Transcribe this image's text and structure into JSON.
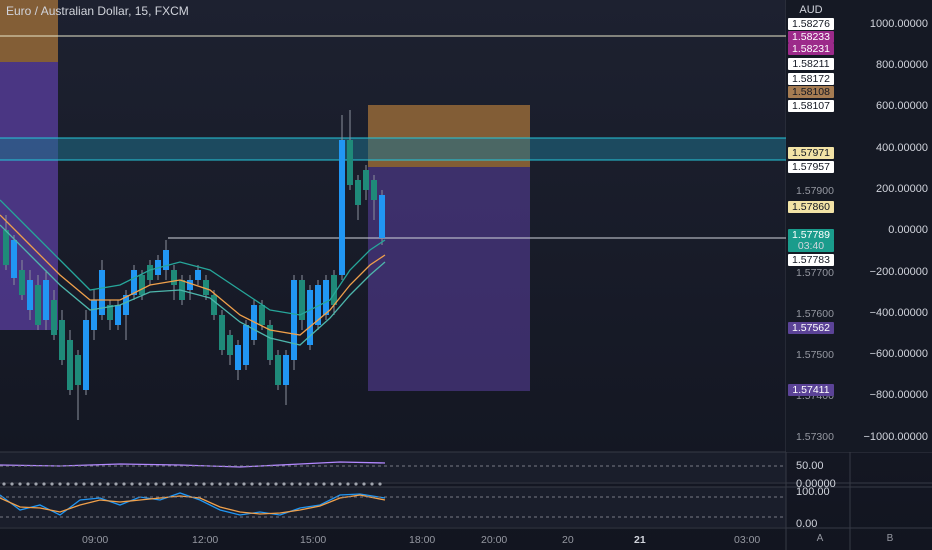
{
  "header": {
    "title": "Euro / Australian Dollar, 15, FXCM"
  },
  "currency_label": "AUD",
  "price_axis_ticks": [
    "1.57900",
    "1.57700",
    "1.57600",
    "1.57500",
    "1.57400",
    "1.57300"
  ],
  "price_labels": [
    {
      "text": "1.58276",
      "bg": "#ffffff",
      "fg": "#131722"
    },
    {
      "text": "1.58233",
      "bg": "#9c2a8a",
      "fg": "#ffffff"
    },
    {
      "text": "1.58231",
      "bg": "#9c2a8a",
      "fg": "#ffffff"
    },
    {
      "text": "1.58211",
      "bg": "#ffffff",
      "fg": "#131722"
    },
    {
      "text": "1.58172",
      "bg": "#ffffff",
      "fg": "#131722"
    },
    {
      "text": "1.58108",
      "bg": "#a67c52",
      "fg": "#131722"
    },
    {
      "text": "1.58107",
      "bg": "#ffffff",
      "fg": "#131722"
    },
    {
      "text": "1.57971",
      "bg": "#f2e3a6",
      "fg": "#131722"
    },
    {
      "text": "1.57957",
      "bg": "#ffffff",
      "fg": "#131722"
    },
    {
      "text": "1.57860",
      "bg": "#f2e3a6",
      "fg": "#131722"
    },
    {
      "text": "1.57789",
      "bg": "#1a9c8c",
      "fg": "#ffffff"
    },
    {
      "text": "03:40",
      "bg": "#1a9c8c",
      "fg": "#d1d4dc"
    },
    {
      "text": "1.57783",
      "bg": "#ffffff",
      "fg": "#131722"
    },
    {
      "text": "1.57562",
      "bg": "#5b4397",
      "fg": "#ffffff"
    },
    {
      "text": "1.57411",
      "bg": "#5b4397",
      "fg": "#ffffff"
    }
  ],
  "right_axis_ticks": [
    "1000.00000",
    "800.00000",
    "600.00000",
    "400.00000",
    "200.00000",
    "0.00000",
    "−200.00000",
    "−400.00000",
    "−600.00000",
    "−800.00000",
    "−1000.00000"
  ],
  "rsi_panel": {
    "level": "50.00",
    "zero": "0.00000"
  },
  "stoch_panel": {
    "top": "100.00",
    "bottom": "0.00"
  },
  "time_axis": [
    "09:00",
    "12:00",
    "15:00",
    "18:00",
    "20:00",
    "20",
    "21",
    "03:00"
  ],
  "corner_buttons": [
    "A",
    "B"
  ],
  "colors": {
    "bull": "#2196f3",
    "bear": "#1f8a79",
    "zone_purple": "#5b3fa0",
    "zone_brown": "#a6733a",
    "hline_cyan": "#26c6da",
    "hline_white": "#e8e6c8"
  }
}
